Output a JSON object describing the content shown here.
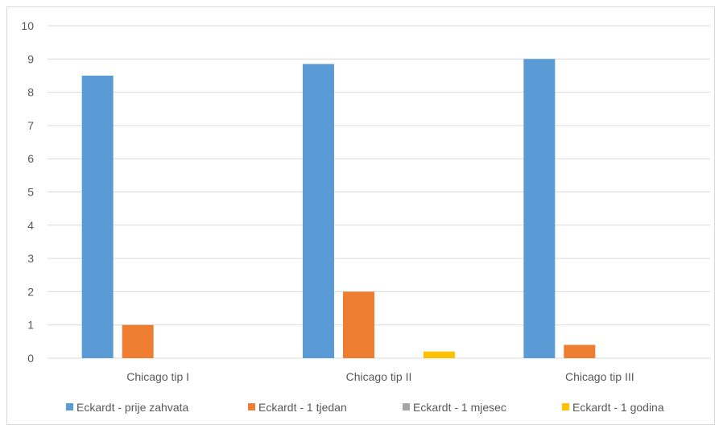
{
  "chart_data": {
    "type": "bar",
    "categories": [
      "Chicago tip I",
      "Chicago tip II",
      "Chicago tip III"
    ],
    "series": [
      {
        "name": "Eckardt - prije zahvata",
        "values": [
          8.5,
          8.85,
          9.0
        ],
        "color": "#5b9bd5"
      },
      {
        "name": "Eckardt - 1 tjedan",
        "values": [
          1.0,
          2.0,
          0.4
        ],
        "color": "#ed7d31"
      },
      {
        "name": "Eckardt - 1 mjesec",
        "values": [
          0,
          0,
          0
        ],
        "color": "#a5a5a5"
      },
      {
        "name": "Eckardt - 1 godina",
        "values": [
          0,
          0.2,
          0
        ],
        "color": "#ffc000"
      }
    ],
    "ylim": [
      0,
      10
    ],
    "yticks": [
      0,
      1,
      2,
      3,
      4,
      5,
      6,
      7,
      8,
      9,
      10
    ],
    "grid": true,
    "legend_position": "bottom"
  }
}
